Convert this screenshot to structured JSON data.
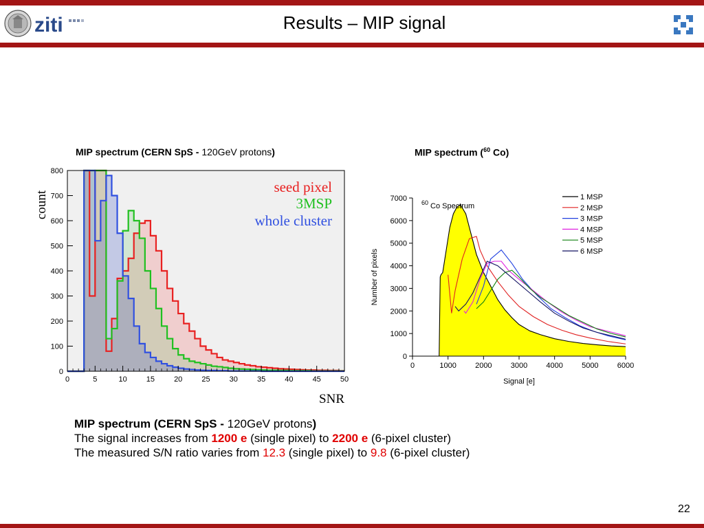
{
  "slide": {
    "title": "Results – MIP signal",
    "page_number": "22"
  },
  "captions": {
    "left_bold": "MIP spectrum (CERN SpS - ",
    "left_normal": "120GeV protons",
    "left_close": ")",
    "right_prefix": "MIP spectrum (",
    "right_sup": "60",
    "right_suffix": " Co)"
  },
  "body_text": {
    "line1_bold": "MIP spectrum (CERN SpS - ",
    "line1_normal": "120GeV protons",
    "line1_close": ")",
    "line2_a": "The signal increases from ",
    "line2_v1": "1200 e",
    "line2_b": " (single pixel) to ",
    "line2_v2": "2200 e",
    "line2_c": " (6-pixel cluster)",
    "line3_a": "The measured S/N ratio varies from ",
    "line3_v1": "12.3",
    "line3_b": " (single pixel) to ",
    "line3_v2": "9.8",
    "line3_c": " (6-pixel cluster)"
  },
  "colors": {
    "brand_bar": "#a31515",
    "highlight_red": "#e00000"
  },
  "chart_data": [
    {
      "type": "area",
      "title": "",
      "xlabel": "SNR",
      "ylabel": "count",
      "xlim": [
        0,
        50
      ],
      "ylim": [
        0,
        800
      ],
      "x_ticks": [
        "0",
        "5",
        "10",
        "15",
        "20",
        "25",
        "30",
        "35",
        "40",
        "45",
        "50"
      ],
      "y_ticks": [
        "0",
        "100",
        "200",
        "300",
        "400",
        "500",
        "600",
        "700",
        "800"
      ],
      "legend_placement": "top-right",
      "series": [
        {
          "name": "seed pixel",
          "color": "#e82020",
          "x": [
            0,
            2,
            3,
            4,
            5,
            6,
            7,
            8,
            9,
            10,
            11,
            12,
            13,
            14,
            15,
            16,
            17,
            18,
            19,
            20,
            21,
            22,
            23,
            24,
            25,
            26,
            27,
            28,
            29,
            30,
            31,
            32,
            33,
            34,
            35,
            36,
            37,
            38,
            39,
            40,
            41,
            42,
            43,
            44,
            45,
            46,
            47,
            48,
            49,
            50
          ],
          "values": [
            0,
            0,
            800,
            300,
            800,
            800,
            80,
            210,
            370,
            400,
            450,
            550,
            590,
            600,
            540,
            480,
            400,
            330,
            280,
            230,
            190,
            160,
            130,
            100,
            85,
            70,
            55,
            45,
            40,
            35,
            30,
            25,
            22,
            18,
            16,
            14,
            12,
            10,
            9,
            8,
            7,
            6,
            5,
            5,
            4,
            4,
            3,
            3,
            2,
            2
          ]
        },
        {
          "name": "3MSP",
          "color": "#20c020",
          "x": [
            0,
            2,
            3,
            4,
            5,
            6,
            7,
            8,
            9,
            10,
            11,
            12,
            13,
            14,
            15,
            16,
            17,
            18,
            19,
            20,
            21,
            22,
            23,
            24,
            25,
            26,
            27,
            28,
            29,
            30,
            31,
            32,
            33,
            34,
            35,
            36,
            37,
            38,
            39,
            40,
            41,
            42,
            43,
            44,
            45,
            46,
            47,
            48,
            49,
            50
          ],
          "values": [
            0,
            0,
            800,
            800,
            800,
            800,
            130,
            170,
            360,
            560,
            640,
            600,
            530,
            400,
            330,
            250,
            180,
            130,
            90,
            65,
            50,
            40,
            35,
            30,
            25,
            20,
            18,
            15,
            12,
            10,
            9,
            8,
            7,
            6,
            5,
            4,
            4,
            3,
            3,
            2,
            2,
            2,
            2,
            1,
            1,
            1,
            1,
            1,
            1,
            1
          ]
        },
        {
          "name": "whole cluster",
          "color": "#3050e0",
          "x": [
            0,
            2,
            3,
            4,
            5,
            6,
            7,
            8,
            9,
            10,
            11,
            12,
            13,
            14,
            15,
            16,
            17,
            18,
            19,
            20,
            21,
            22,
            23,
            24,
            25,
            26,
            27,
            28,
            29,
            30,
            31,
            32,
            33,
            34,
            35,
            36,
            37,
            38,
            39,
            40,
            41,
            42,
            43,
            44,
            45,
            46,
            47,
            48,
            49,
            50
          ],
          "values": [
            0,
            0,
            800,
            800,
            520,
            680,
            780,
            700,
            550,
            380,
            290,
            180,
            110,
            75,
            55,
            40,
            30,
            22,
            16,
            12,
            9,
            7,
            5,
            4,
            3,
            3,
            2,
            2,
            1,
            1,
            1,
            1,
            1,
            1,
            0,
            0,
            0,
            0,
            0,
            0,
            0,
            0,
            0,
            0,
            0,
            0,
            0,
            0,
            0,
            0
          ]
        }
      ]
    },
    {
      "type": "line",
      "title": "Co Spectrum",
      "title_sup": "60",
      "xlabel": "Signal [e]",
      "ylabel": "Number of pixels",
      "xlim": [
        0,
        6000
      ],
      "ylim": [
        0,
        7000
      ],
      "x_ticks": [
        "0",
        "1000",
        "2000",
        "3000",
        "4000",
        "5000",
        "6000"
      ],
      "y_ticks": [
        "0",
        "1000",
        "2000",
        "3000",
        "4000",
        "5000",
        "6000",
        "7000"
      ],
      "legend_placement": "top-right",
      "series": [
        {
          "name": "1 MSP",
          "color": "#000000",
          "fill": "#ffff00",
          "x": [
            750,
            780,
            800,
            850,
            950,
            1050,
            1150,
            1250,
            1350,
            1500,
            1600,
            1700,
            1800,
            2000,
            2200,
            2400,
            2600,
            2800,
            3000,
            3300,
            3600,
            4000,
            4400,
            4800,
            5200,
            5600,
            6000
          ],
          "values": [
            0,
            3500,
            3600,
            3700,
            4700,
            5700,
            6300,
            6600,
            6700,
            6300,
            5700,
            5100,
            4500,
            3700,
            3100,
            2500,
            2050,
            1700,
            1400,
            1120,
            950,
            770,
            650,
            560,
            500,
            450,
            420
          ]
        },
        {
          "name": "2 MSP",
          "color": "#e02020",
          "x": [
            1000,
            1100,
            1200,
            1400,
            1600,
            1800,
            1900,
            2100,
            2400,
            2700,
            3000,
            3400,
            3800,
            4200,
            4600,
            5000,
            5500,
            6000
          ],
          "values": [
            3600,
            1900,
            2900,
            4300,
            5200,
            5300,
            4700,
            4000,
            3300,
            2700,
            2200,
            1750,
            1400,
            1150,
            950,
            800,
            650,
            540
          ]
        },
        {
          "name": "3 MSP",
          "color": "#2040e0",
          "x": [
            1800,
            2000,
            2200,
            2500,
            2800,
            3100,
            3500,
            3900,
            4300,
            4700,
            5100,
            5500,
            6000
          ],
          "values": [
            2300,
            3100,
            4300,
            4700,
            4100,
            3400,
            2700,
            2100,
            1700,
            1350,
            1100,
            900,
            720
          ]
        },
        {
          "name": "4 MSP",
          "color": "#e020e0",
          "x": [
            1450,
            1500,
            1700,
            1900,
            2100,
            2300,
            2500,
            2700,
            3000,
            3400,
            3800,
            4200,
            4600,
            5000,
            5500,
            6000
          ],
          "values": [
            2000,
            1900,
            2400,
            3400,
            4100,
            4200,
            4200,
            3800,
            3400,
            2900,
            2400,
            1950,
            1600,
            1300,
            1100,
            900
          ]
        },
        {
          "name": "5 MSP",
          "color": "#108010",
          "x": [
            1800,
            2000,
            2200,
            2400,
            2600,
            2800,
            3000,
            3300,
            3600,
            4000,
            4400,
            4800,
            5200,
            5600,
            6000
          ],
          "values": [
            2100,
            2400,
            2900,
            3400,
            3700,
            3800,
            3500,
            3000,
            2600,
            2200,
            1800,
            1500,
            1200,
            1000,
            850
          ]
        },
        {
          "name": "6 MSP",
          "color": "#101060",
          "x": [
            1200,
            1300,
            1500,
            1700,
            1900,
            2100,
            2400,
            2700,
            3000,
            3300,
            3600,
            4000,
            4400,
            4800,
            5200,
            5600,
            6000
          ],
          "values": [
            2200,
            2000,
            2300,
            2800,
            3500,
            4200,
            4000,
            3600,
            3200,
            2800,
            2400,
            1900,
            1550,
            1250,
            1050,
            900,
            750
          ]
        }
      ]
    }
  ]
}
